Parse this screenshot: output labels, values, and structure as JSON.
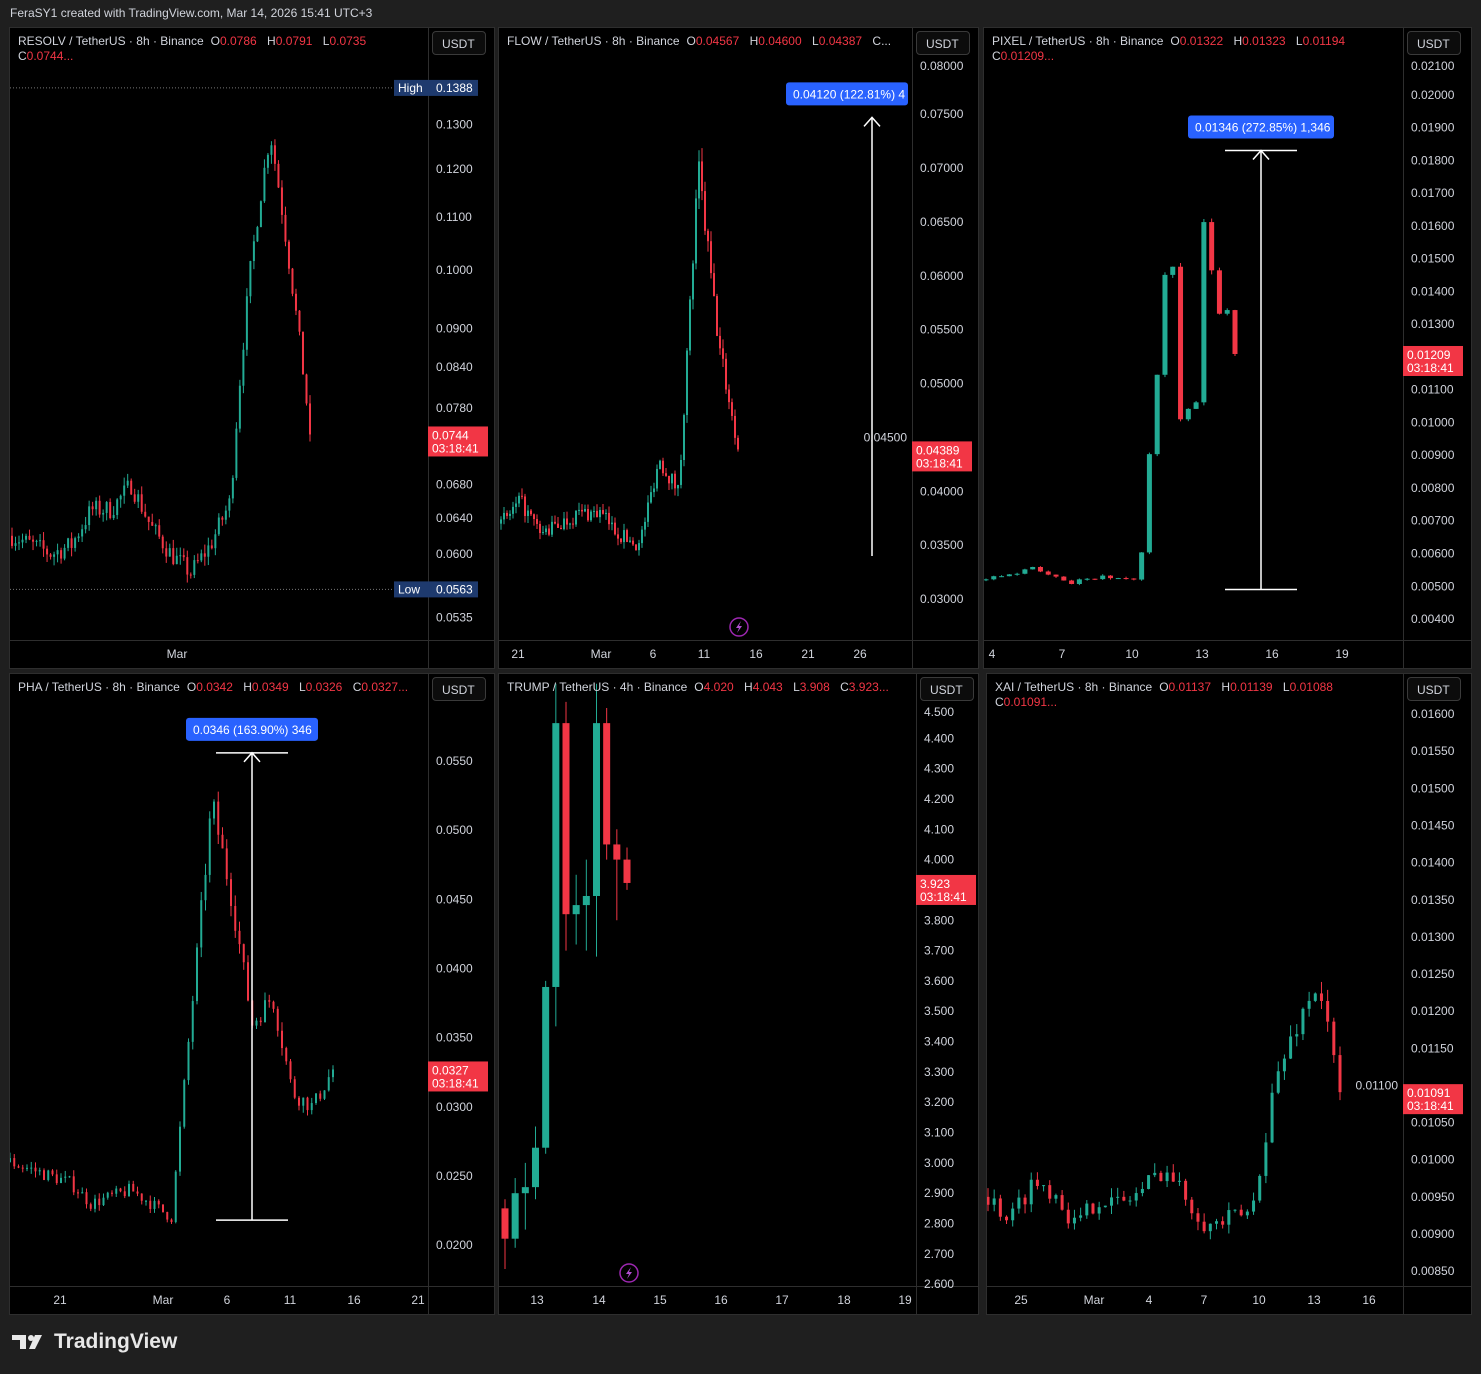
{
  "top_caption": "FeraSY1 created with TradingView.com, Mar 14, 2026 15:41 UTC+3",
  "brand": "TradingView",
  "colors": {
    "up": "#22ab94",
    "down": "#f23645",
    "measure": "#2962ff",
    "background": "#000000",
    "hilo": "#1e3a6e"
  },
  "currency_button": "USDT",
  "countdown": "03:18:41",
  "chart_data": [
    {
      "type": "candlestick",
      "symbol": "RESOLV / TetherUS · 8h · Binance",
      "ohlc": [
        {
          "k": "O",
          "v": "0.0786"
        },
        {
          "k": "H",
          "v": "0.0791"
        },
        {
          "k": "L",
          "v": "0.0735"
        },
        {
          "k": "C",
          "v": "0.0744..."
        }
      ],
      "scale": "log",
      "ylim": [
        0.0514,
        0.1546
      ],
      "yticks": [
        "0.1300",
        "0.1200",
        "0.1100",
        "0.1000",
        "0.0900",
        "0.0840",
        "0.0780",
        "0.0680",
        "0.0640",
        "0.0600",
        "0.0535"
      ],
      "xticks": [
        "Mar"
      ],
      "candle_count": 86,
      "approx_closes": [
        0.062,
        0.061,
        0.06,
        0.061,
        0.065,
        0.065,
        0.068,
        0.063,
        0.06,
        0.058,
        0.061,
        0.066,
        0.1,
        0.128,
        0.1,
        0.0744
      ],
      "last_price": "0.0744",
      "high_marker": {
        "label": "High",
        "value": "0.1388"
      },
      "low_marker": {
        "label": "Low",
        "value": "0.0563"
      }
    },
    {
      "type": "candlestick",
      "symbol": "FLOW / TetherUS · 8h · Binance",
      "ohlc": [
        {
          "k": "O",
          "v": "0.04567"
        },
        {
          "k": "H",
          "v": "0.04600"
        },
        {
          "k": "L",
          "v": "0.04387"
        },
        {
          "k": "C...",
          "v": ""
        }
      ],
      "scale": "linear",
      "ylim": [
        0.0262,
        0.083
      ],
      "yticks": [
        "0.08000",
        "0.07500",
        "0.07000",
        "0.06500",
        "0.06000",
        "0.05500",
        "0.05000",
        "0.04500",
        "0.04000",
        "0.03500",
        "0.03000"
      ],
      "xticks": [
        "21",
        "Mar",
        "6",
        "11",
        "16",
        "21",
        "26"
      ],
      "candle_count": 80,
      "approx_closes": [
        0.037,
        0.039,
        0.036,
        0.037,
        0.038,
        0.038,
        0.036,
        0.035,
        0.043,
        0.04,
        0.07,
        0.054,
        0.04389
      ],
      "last_price": "0.04389",
      "measure": {
        "from": 0.034,
        "to": 0.0747,
        "label": "0.04120 (122.81%) 4"
      },
      "event_icon": "lightning-icon"
    },
    {
      "type": "candlestick",
      "symbol": "PIXEL / TetherUS · 8h · Binance",
      "ohlc": [
        {
          "k": "O",
          "v": "0.01322"
        },
        {
          "k": "H",
          "v": "0.01323"
        },
        {
          "k": "L",
          "v": "0.01194"
        },
        {
          "k": "C",
          "v": "0.01209..."
        }
      ],
      "scale": "linear",
      "ylim": [
        0.00336,
        0.02204
      ],
      "yticks": [
        "0.02100",
        "0.02000",
        "0.01900",
        "0.01800",
        "0.01700",
        "0.01600",
        "0.01500",
        "0.01400",
        "0.01300",
        "0.01100",
        "0.01000",
        "0.00900",
        "0.00800",
        "0.00700",
        "0.00600",
        "0.00500",
        "0.00400"
      ],
      "xticks": [
        "4",
        "7",
        "10",
        "13",
        "16",
        "19"
      ],
      "candle_count": 33,
      "approx_closes": [
        0.0052,
        0.0053,
        0.0053,
        0.0054,
        0.0054,
        0.0055,
        0.0056,
        0.0055,
        0.0054,
        0.0053,
        0.0052,
        0.0051,
        0.0052,
        0.0052,
        0.0052,
        0.0053,
        0.0052,
        0.0053,
        0.0052,
        0.0052,
        0.006,
        0.009,
        0.0115,
        0.0145,
        0.0147,
        0.01,
        0.0104,
        0.0106,
        0.016,
        0.0147,
        0.0133,
        0.0135,
        0.01209
      ],
      "last_price": "0.01209",
      "measure": {
        "from": 0.0049,
        "to": 0.0183,
        "label": "0.01346 (272.85%) 1,346"
      }
    },
    {
      "type": "candlestick",
      "symbol": "PHA / TetherUS · 8h · Binance",
      "ohlc": [
        {
          "k": "O",
          "v": "0.0342"
        },
        {
          "k": "H",
          "v": "0.0349"
        },
        {
          "k": "L",
          "v": "0.0326"
        },
        {
          "k": "C",
          "v": "0.0327..."
        }
      ],
      "scale": "linear",
      "ylim": [
        0.01704,
        0.0613
      ],
      "yticks": [
        "0.0550",
        "0.0500",
        "0.0450",
        "0.0400",
        "0.0350",
        "0.0300",
        "0.0250",
        "0.0200"
      ],
      "xticks": [
        "21",
        "Mar",
        "6",
        "11",
        "16",
        "21"
      ],
      "candle_count": 77,
      "approx_closes": [
        0.026,
        0.0255,
        0.025,
        0.0245,
        0.023,
        0.0235,
        0.024,
        0.023,
        0.022,
        0.037,
        0.052,
        0.045,
        0.036,
        0.038,
        0.031,
        0.03,
        0.0327
      ],
      "last_price": "0.0327",
      "measure": {
        "from": 0.0218,
        "to": 0.0556,
        "label": "0.0346 (163.90%) 346"
      }
    },
    {
      "type": "candlestick",
      "symbol": "TRUMP / TetherUS · 4h · Binance",
      "ohlc": [
        {
          "k": "O",
          "v": "4.020"
        },
        {
          "k": "H",
          "v": "4.043"
        },
        {
          "k": "L",
          "v": "3.908"
        },
        {
          "k": "C",
          "v": "3.923..."
        }
      ],
      "scale": "linear",
      "ylim": [
        2.594,
        4.612
      ],
      "yticks": [
        "4.500",
        "4.400",
        "4.300",
        "4.200",
        "4.100",
        "4.000",
        "3.800",
        "3.700",
        "3.600",
        "3.500",
        "3.400",
        "3.300",
        "3.200",
        "3.100",
        "3.000",
        "2.900",
        "2.800",
        "2.700",
        "2.600"
      ],
      "xticks": [
        "13",
        "14",
        "15",
        "16",
        "17",
        "18",
        "19"
      ],
      "candles": [
        [
          2.85,
          2.88,
          2.65,
          2.75
        ],
        [
          2.75,
          2.95,
          2.72,
          2.9
        ],
        [
          2.9,
          3.0,
          2.78,
          2.92
        ],
        [
          2.92,
          3.12,
          2.88,
          3.05
        ],
        [
          3.05,
          3.6,
          3.03,
          3.58
        ],
        [
          3.58,
          4.58,
          3.45,
          4.45
        ],
        [
          4.45,
          4.52,
          3.7,
          3.82
        ],
        [
          3.82,
          3.95,
          3.72,
          3.85
        ],
        [
          3.85,
          4.0,
          3.7,
          3.88
        ],
        [
          3.88,
          4.58,
          3.68,
          4.45
        ],
        [
          4.45,
          4.5,
          4.0,
          4.05
        ],
        [
          4.05,
          4.1,
          3.8,
          4.0
        ],
        [
          4.0,
          4.04,
          3.9,
          3.923
        ]
      ],
      "last_price": "3.923",
      "event_icon": "lightning-icon"
    },
    {
      "type": "candlestick",
      "symbol": "XAI / TetherUS · 8h · Binance",
      "ohlc": [
        {
          "k": "O",
          "v": "0.01137"
        },
        {
          "k": "H",
          "v": "0.01139"
        },
        {
          "k": "L",
          "v": "0.01088"
        },
        {
          "k": "C",
          "v": "0.01091..."
        }
      ],
      "scale": "linear",
      "ylim": [
        0.0083,
        0.01654
      ],
      "yticks": [
        "0.01600",
        "0.01550",
        "0.01500",
        "0.01450",
        "0.01400",
        "0.01350",
        "0.01300",
        "0.01250",
        "0.01200",
        "0.01150",
        "0.01100",
        "0.01050",
        "0.01000",
        "0.00950",
        "0.00900",
        "0.00850"
      ],
      "xticks": [
        "25",
        "Mar",
        "4",
        "7",
        "10",
        "13",
        "16"
      ],
      "candle_count": 58,
      "approx_closes": [
        0.0095,
        0.0092,
        0.0097,
        0.0096,
        0.0091,
        0.0095,
        0.0094,
        0.0096,
        0.0099,
        0.0095,
        0.0091,
        0.0092,
        0.0093,
        0.011,
        0.0118,
        0.0124,
        0.01091
      ],
      "last_price": "0.01091"
    }
  ]
}
